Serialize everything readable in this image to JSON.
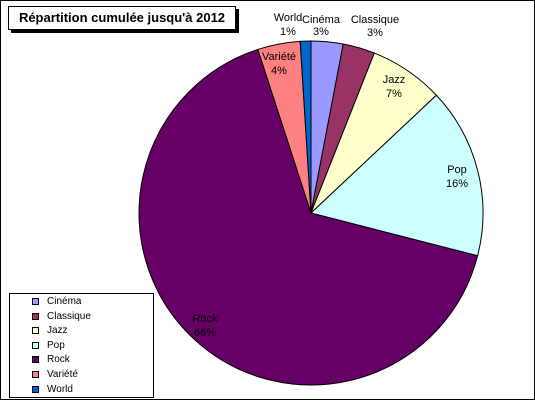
{
  "chart_data": {
    "type": "pie",
    "title": "Répartition cumulée jusqu'à 2012",
    "slices": [
      {
        "label": "Cinéma",
        "value": 3,
        "display": "3%",
        "color": "#9999ff"
      },
      {
        "label": "Classique",
        "value": 3,
        "display": "3%",
        "color": "#993366"
      },
      {
        "label": "Jazz",
        "value": 7,
        "display": "7%",
        "color": "#ffffcc"
      },
      {
        "label": "Pop",
        "value": 16,
        "display": "16%",
        "color": "#ccffff"
      },
      {
        "label": "Rock",
        "value": 66,
        "display": "66%",
        "color": "#660066"
      },
      {
        "label": "Variété",
        "value": 4,
        "display": "4%",
        "color": "#ff8080"
      },
      {
        "label": "World",
        "value": 1,
        "display": "1%",
        "color": "#0066cc"
      }
    ],
    "legend_items": [
      "Cinéma",
      "Classique",
      "Jazz",
      "Pop",
      "Rock",
      "Variété",
      "World"
    ],
    "legend_position": "bottom-left",
    "border_color": "#000000"
  }
}
